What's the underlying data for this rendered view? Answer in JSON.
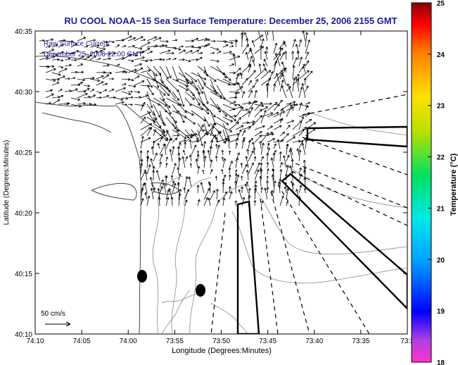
{
  "title": "RU COOL  NOAA−15  Sea Surface Temperature:  December 25, 2006 2155 GMT",
  "overlay": {
    "line1": "Raw Surface Current:",
    "line2": "December 25, 2006 22:00 GMT"
  },
  "axes": {
    "xlabel": "Longitude (Degrees:Minutes)",
    "ylabel": "Latitude (Degrees:Minutes)",
    "x_ticks": [
      "74:10",
      "74:05",
      "74:00",
      "73:55",
      "73:50",
      "73:45",
      "73:40",
      "73:35",
      "73:3"
    ],
    "y_ticks": [
      "40:35",
      "40:30",
      "40:25",
      "40:20",
      "40:15",
      "40:10"
    ]
  },
  "scale_label": "50 cm/s",
  "colorbar": {
    "label": "Temperature (°C)",
    "ticks": [
      "25",
      "24",
      "23",
      "22",
      "21",
      "20",
      "19",
      "18"
    ],
    "min": 18,
    "max": 25
  },
  "colors": {
    "title": "#1a1a9c",
    "overlay_text": "#1a1a9c",
    "coastline": "#555555",
    "vectors": "#000000"
  }
}
